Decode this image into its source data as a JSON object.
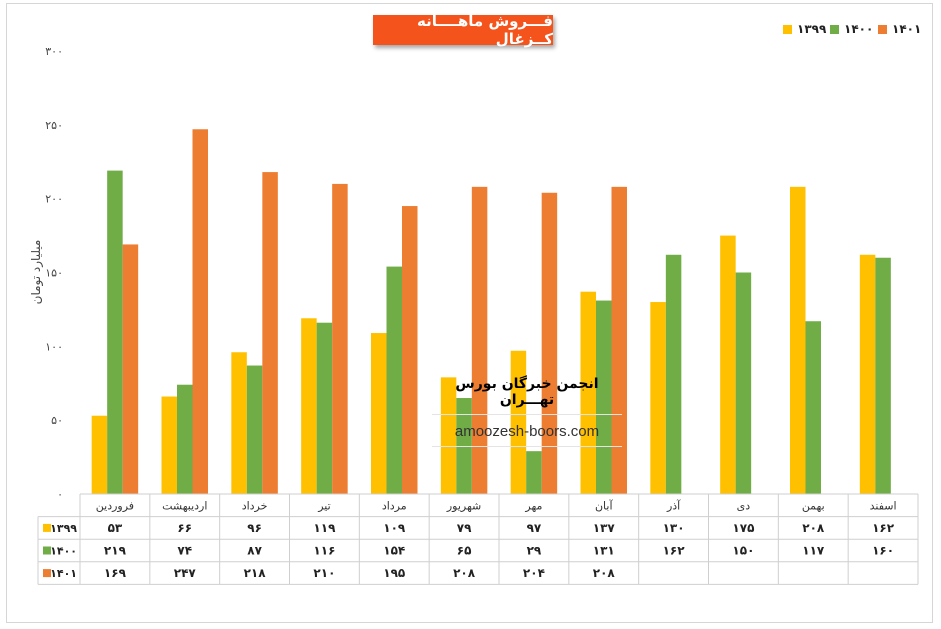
{
  "chart_data": {
    "type": "bar",
    "title": "فـــروش ماهــــانه کــزغال",
    "ylabel": "میلیارد تومان",
    "ylim": [
      0,
      300
    ],
    "yticks": [
      "۰",
      "۵۰",
      "۱۰۰",
      "۱۵۰",
      "۲۰۰",
      "۲۵۰",
      "۳۰۰"
    ],
    "categories": [
      "فروردین",
      "اردیبهشت",
      "خرداد",
      "تیر",
      "مرداد",
      "شهریور",
      "مهر",
      "آبان",
      "آذر",
      "دی",
      "بهمن",
      "اسفند"
    ],
    "series": [
      {
        "name": "۱۳۹۹",
        "color": "#ffc000",
        "values": [
          53,
          66,
          96,
          119,
          109,
          79,
          97,
          137,
          130,
          175,
          208,
          162
        ],
        "labels": [
          "۵۳",
          "۶۶",
          "۹۶",
          "۱۱۹",
          "۱۰۹",
          "۷۹",
          "۹۷",
          "۱۳۷",
          "۱۳۰",
          "۱۷۵",
          "۲۰۸",
          "۱۶۲"
        ]
      },
      {
        "name": "۱۴۰۰",
        "color": "#70ad47",
        "values": [
          219,
          74,
          87,
          116,
          154,
          65,
          29,
          131,
          162,
          150,
          117,
          160
        ],
        "labels": [
          "۲۱۹",
          "۷۴",
          "۸۷",
          "۱۱۶",
          "۱۵۴",
          "۶۵",
          "۲۹",
          "۱۳۱",
          "۱۶۲",
          "۱۵۰",
          "۱۱۷",
          "۱۶۰"
        ]
      },
      {
        "name": "۱۴۰۱",
        "color": "#ed7d31",
        "values": [
          169,
          247,
          218,
          210,
          195,
          208,
          204,
          208,
          null,
          null,
          null,
          null
        ],
        "labels": [
          "۱۶۹",
          "۲۴۷",
          "۲۱۸",
          "۲۱۰",
          "۱۹۵",
          "۲۰۸",
          "۲۰۴",
          "۲۰۸",
          "",
          "",
          "",
          ""
        ]
      }
    ],
    "legend_position": "top-right",
    "grid": false,
    "data_table": true
  },
  "watermark": {
    "title": "انجمن خبرگان بورس تهـــران",
    "url": "amoozesh-boors.com"
  }
}
